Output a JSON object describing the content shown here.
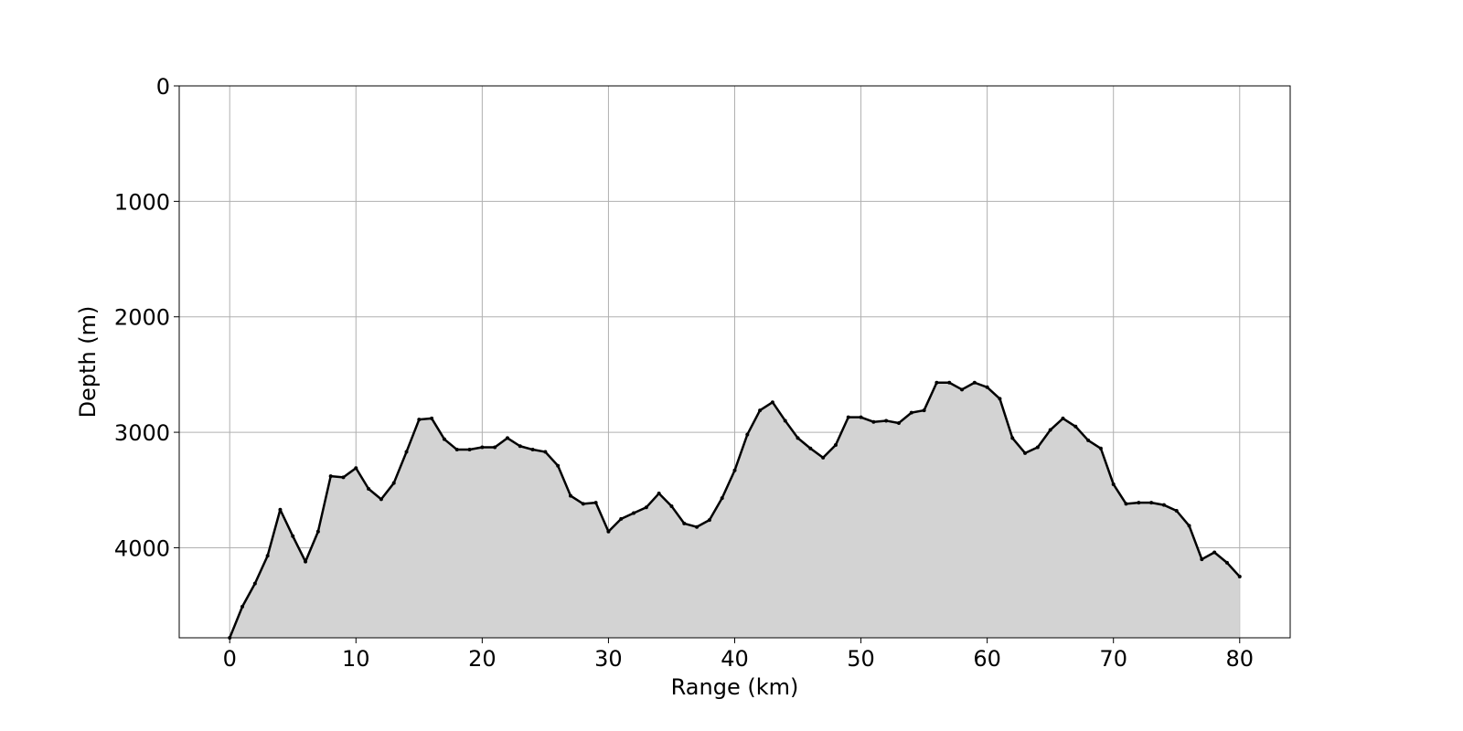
{
  "chart_data": {
    "type": "area",
    "title": "",
    "xlabel": "Range (km)",
    "ylabel": "Depth (m)",
    "xlim": [
      -4,
      84
    ],
    "ylim": [
      4780,
      0
    ],
    "y_inverted": true,
    "grid": true,
    "xticks": [
      0,
      10,
      20,
      30,
      40,
      50,
      60,
      70,
      80
    ],
    "yticks": [
      0,
      1000,
      2000,
      3000,
      4000
    ],
    "fill_color": "#d3d3d3",
    "line_color": "#000000",
    "series": [
      {
        "x": [
          0,
          1,
          2,
          3,
          4,
          5,
          6,
          7,
          8,
          9,
          10,
          11,
          12,
          13,
          14,
          15,
          16,
          17,
          18,
          19,
          20,
          21,
          22,
          23,
          24,
          25,
          26,
          27,
          28,
          29,
          30,
          31,
          32,
          33,
          34,
          35,
          36,
          37,
          38,
          39,
          40,
          41,
          42,
          43,
          44,
          45,
          46,
          47,
          48,
          49,
          50,
          51,
          52,
          53,
          54,
          55,
          56,
          57,
          58,
          59,
          60,
          61,
          62,
          63,
          64,
          65,
          66,
          67,
          68,
          69,
          70,
          71,
          72,
          73,
          74,
          75,
          76,
          77,
          78,
          79,
          80
        ],
        "y": [
          4780,
          4510,
          4310,
          4070,
          3670,
          3900,
          4120,
          3860,
          3380,
          3390,
          3310,
          3490,
          3580,
          3440,
          3170,
          2890,
          2880,
          3060,
          3150,
          3150,
          3130,
          3130,
          3050,
          3120,
          3150,
          3170,
          3290,
          3550,
          3620,
          3610,
          3860,
          3750,
          3700,
          3650,
          3530,
          3640,
          3790,
          3820,
          3760,
          3570,
          3330,
          3020,
          2810,
          2740,
          2900,
          3050,
          3140,
          3220,
          3110,
          2870,
          2870,
          2910,
          2900,
          2920,
          2830,
          2810,
          2570,
          2570,
          2630,
          2570,
          2610,
          2710,
          3050,
          3180,
          3130,
          2980,
          2880,
          2950,
          3070,
          3140,
          3450,
          3620,
          3610,
          3610,
          3630,
          3680,
          3810,
          4100,
          4040,
          4130,
          4250
        ]
      }
    ]
  }
}
